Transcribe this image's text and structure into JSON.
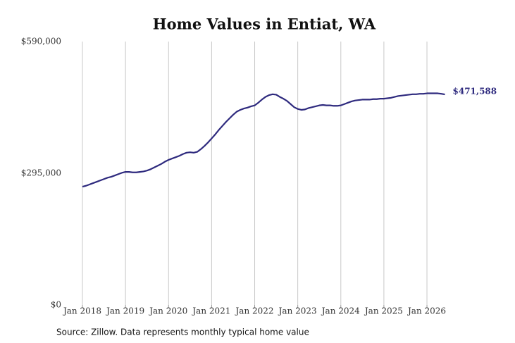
{
  "chart_data": {
    "type": "line",
    "title": "Home Values in Entiat, WA",
    "source": "Source: Zillow. Data represents monthly typical home value",
    "color": "#2e2a7e",
    "x": [
      "2018-01",
      "2018-02",
      "2018-03",
      "2018-04",
      "2018-05",
      "2018-06",
      "2018-07",
      "2018-08",
      "2018-09",
      "2018-10",
      "2018-11",
      "2018-12",
      "2019-01",
      "2019-02",
      "2019-03",
      "2019-04",
      "2019-05",
      "2019-06",
      "2019-07",
      "2019-08",
      "2019-09",
      "2019-10",
      "2019-11",
      "2019-12",
      "2020-01",
      "2020-02",
      "2020-03",
      "2020-04",
      "2020-05",
      "2020-06",
      "2020-07",
      "2020-08",
      "2020-09",
      "2020-10",
      "2020-11",
      "2020-12",
      "2021-01",
      "2021-02",
      "2021-03",
      "2021-04",
      "2021-05",
      "2021-06",
      "2021-07",
      "2021-08",
      "2021-09",
      "2021-10",
      "2021-11",
      "2021-12",
      "2022-01",
      "2022-02",
      "2022-03",
      "2022-04",
      "2022-05",
      "2022-06",
      "2022-07",
      "2022-08",
      "2022-09",
      "2022-10",
      "2022-11",
      "2022-12",
      "2023-01",
      "2023-02",
      "2023-03",
      "2023-04",
      "2023-05",
      "2023-06",
      "2023-07",
      "2023-08",
      "2023-09",
      "2023-10",
      "2023-11",
      "2023-12",
      "2024-01",
      "2024-02",
      "2024-03",
      "2024-04",
      "2024-05",
      "2024-06",
      "2024-07",
      "2024-08",
      "2024-09",
      "2024-10",
      "2024-11",
      "2024-12",
      "2025-01",
      "2025-02",
      "2025-03",
      "2025-04",
      "2025-05",
      "2025-06",
      "2025-07",
      "2025-08",
      "2025-09",
      "2025-10",
      "2025-11",
      "2025-12",
      "2026-01",
      "2026-02",
      "2026-03",
      "2026-04",
      "2026-05",
      "2026-06"
    ],
    "values": [
      265000,
      267000,
      270000,
      273000,
      276000,
      279000,
      282000,
      285000,
      287000,
      290000,
      293000,
      296000,
      298000,
      298000,
      297000,
      297000,
      298000,
      299000,
      301000,
      304000,
      308000,
      312000,
      316000,
      321000,
      325000,
      328000,
      331000,
      334000,
      338000,
      341000,
      342000,
      341000,
      343000,
      349000,
      356000,
      364000,
      373000,
      382000,
      392000,
      401000,
      410000,
      418000,
      426000,
      433000,
      437000,
      440000,
      442000,
      445000,
      447000,
      453000,
      460000,
      466000,
      470000,
      472000,
      471000,
      466000,
      462000,
      457000,
      450000,
      443000,
      439000,
      437000,
      438000,
      441000,
      443000,
      445000,
      447000,
      448000,
      447000,
      447000,
      446000,
      446000,
      447000,
      450000,
      453000,
      456000,
      458000,
      459000,
      460000,
      460000,
      460000,
      461000,
      461000,
      462000,
      462000,
      463000,
      464000,
      466000,
      468000,
      469000,
      470000,
      471000,
      472000,
      472000,
      473000,
      473000,
      474000,
      474000,
      474000,
      474000,
      473000,
      471588
    ],
    "value_labels": [
      null,
      null,
      null,
      null,
      null,
      null,
      null,
      null,
      null,
      null,
      null,
      null,
      null,
      null,
      null,
      null,
      null,
      null,
      null,
      null,
      null,
      null,
      null,
      null,
      null,
      null,
      null,
      null,
      null,
      null,
      null,
      null,
      null,
      null,
      null,
      null,
      null,
      null,
      null,
      null,
      null,
      null,
      null,
      null,
      null,
      null,
      null,
      null,
      null,
      null,
      null,
      null,
      null,
      null,
      null,
      null,
      null,
      null,
      null,
      null,
      null,
      null,
      null,
      null,
      null,
      null,
      null,
      null,
      null,
      null,
      null,
      null,
      null,
      null,
      null,
      null,
      null,
      null,
      null,
      null,
      null,
      null,
      null,
      null,
      null,
      null,
      null,
      null,
      null,
      null,
      null,
      null,
      null,
      null,
      null,
      null,
      null,
      null,
      null,
      null,
      null,
      "$471,588"
    ],
    "xlim": [
      "2018-01",
      "2026-06"
    ],
    "xticks": [
      {
        "value": "2018-01",
        "label": "Jan 2018"
      },
      {
        "value": "2019-01",
        "label": "Jan 2019"
      },
      {
        "value": "2020-01",
        "label": "Jan 2020"
      },
      {
        "value": "2021-01",
        "label": "Jan 2021"
      },
      {
        "value": "2022-01",
        "label": "Jan 2022"
      },
      {
        "value": "2023-01",
        "label": "Jan 2023"
      },
      {
        "value": "2024-01",
        "label": "Jan 2024"
      },
      {
        "value": "2025-01",
        "label": "Jan 2025"
      },
      {
        "value": "2026-01",
        "label": "Jan 2026"
      }
    ],
    "ylim": [
      0,
      590000
    ],
    "yticks": [
      {
        "value": 0,
        "label": "$0"
      },
      {
        "value": 295000,
        "label": "$295,000"
      },
      {
        "value": 590000,
        "label": "$590,000"
      }
    ],
    "grid": true
  }
}
